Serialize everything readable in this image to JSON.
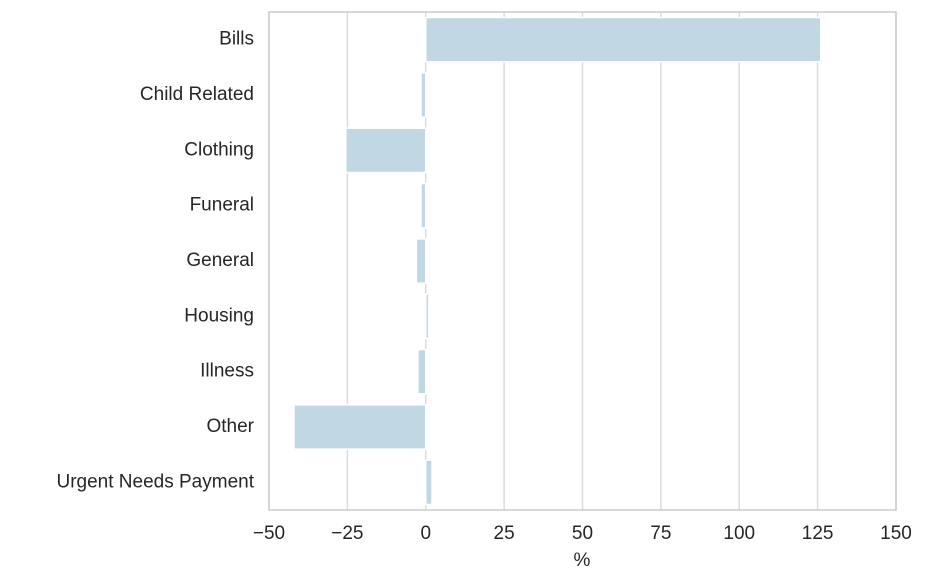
{
  "chart_data": {
    "type": "barh",
    "categories": [
      "Bills",
      "Child Related",
      "Clothing",
      "Funeral",
      "General",
      "Housing",
      "Illness",
      "Other",
      "Urgent Needs Payment"
    ],
    "values": [
      126,
      -1.5,
      -25.5,
      -1.5,
      -3,
      1,
      -2.5,
      -42,
      2
    ],
    "color": "#c2d7e4",
    "xlabel": "%",
    "xlim": [
      -50,
      150
    ],
    "xticks": [
      {
        "value": -50,
        "label": "−50"
      },
      {
        "value": -25,
        "label": "−25"
      },
      0,
      25,
      50,
      75,
      100,
      125,
      150
    ],
    "grid": true
  }
}
